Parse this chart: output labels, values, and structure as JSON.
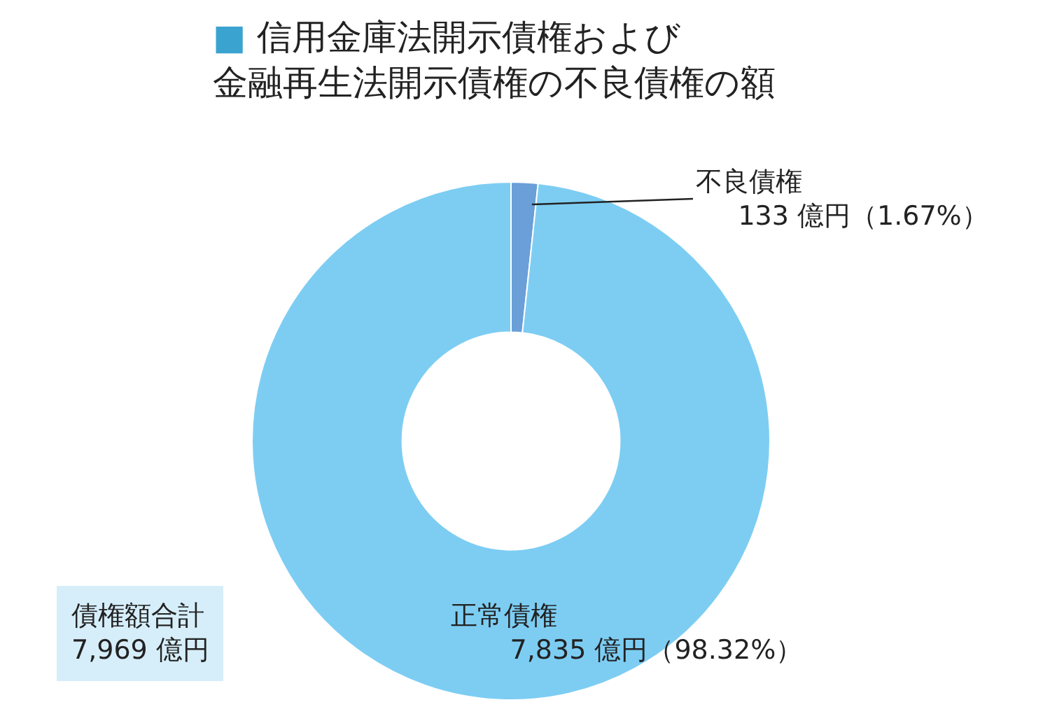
{
  "chart_data": {
    "type": "donut",
    "title": "■ 信用金庫法開示債権および金融再生法開示債権の不良債権の額",
    "categories": [
      "不良債権",
      "正常債権"
    ],
    "values": [
      133,
      7835
    ],
    "colors": [
      "#6a9fd8",
      "#7dcdf3"
    ],
    "value_labels": [
      "133 億円（1.67%）",
      "7,835 億円（98.32%）"
    ],
    "annotations": [
      "債権額合計\n7,969 億円"
    ],
    "legend": false
  }
}
